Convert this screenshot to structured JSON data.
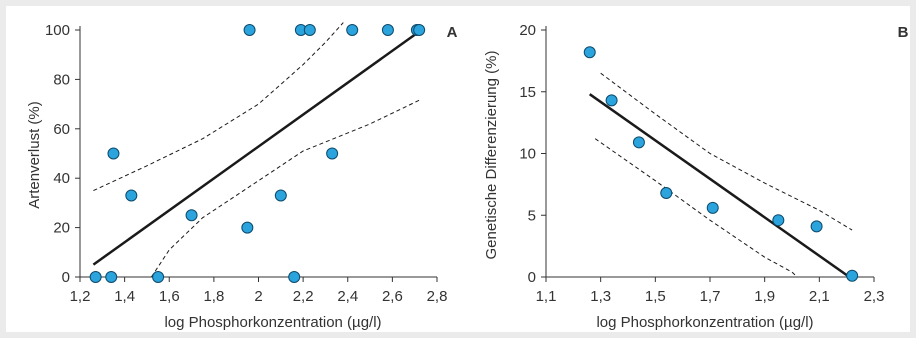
{
  "chart_data": [
    {
      "panel": "A",
      "type": "scatter",
      "xlabel": "log Phosphorkonzentration (µg/l)",
      "ylabel": "Artenverlust (%)",
      "xlim": [
        1.2,
        2.8
      ],
      "ylim": [
        0,
        100
      ],
      "xticks": [
        "1,2",
        "1,4",
        "1,6",
        "1,8",
        "2",
        "2,2",
        "2,4",
        "2,6",
        "2,8"
      ],
      "yticks": [
        "0",
        "20",
        "40",
        "60",
        "80",
        "100"
      ],
      "grid": false,
      "colors": {
        "point": "#2ba3dd",
        "point_stroke": "#0d4a6b",
        "line": "#1a1a1a",
        "ci": "#1a1a1a"
      },
      "points": [
        {
          "x": 1.27,
          "y": 0
        },
        {
          "x": 1.34,
          "y": 0
        },
        {
          "x": 1.55,
          "y": 0
        },
        {
          "x": 2.16,
          "y": 0
        },
        {
          "x": 1.35,
          "y": 50
        },
        {
          "x": 1.43,
          "y": 33
        },
        {
          "x": 1.7,
          "y": 25
        },
        {
          "x": 1.95,
          "y": 20
        },
        {
          "x": 2.1,
          "y": 33
        },
        {
          "x": 2.33,
          "y": 50
        },
        {
          "x": 1.96,
          "y": 100
        },
        {
          "x": 2.19,
          "y": 100
        },
        {
          "x": 2.23,
          "y": 100
        },
        {
          "x": 2.42,
          "y": 100
        },
        {
          "x": 2.58,
          "y": 100
        },
        {
          "x": 2.71,
          "y": 100
        },
        {
          "x": 2.72,
          "y": 100
        }
      ],
      "fit": [
        {
          "x": 1.26,
          "y": 5
        },
        {
          "x": 2.73,
          "y": 100
        }
      ],
      "ci_upper": [
        {
          "x": 1.26,
          "y": 35
        },
        {
          "x": 1.5,
          "y": 45
        },
        {
          "x": 1.75,
          "y": 56
        },
        {
          "x": 2.0,
          "y": 70
        },
        {
          "x": 2.2,
          "y": 86
        },
        {
          "x": 2.3,
          "y": 95
        },
        {
          "x": 2.38,
          "y": 103
        }
      ],
      "ci_lower": [
        {
          "x": 1.52,
          "y": 0
        },
        {
          "x": 1.6,
          "y": 11
        },
        {
          "x": 1.75,
          "y": 24
        },
        {
          "x": 2.0,
          "y": 39
        },
        {
          "x": 2.2,
          "y": 51
        },
        {
          "x": 2.5,
          "y": 62
        },
        {
          "x": 2.73,
          "y": 72
        }
      ]
    },
    {
      "panel": "B",
      "type": "scatter",
      "xlabel": "log Phosphorkonzentration (µg/l)",
      "ylabel": "Genetische Differenzierung (%)",
      "xlim": [
        1.1,
        2.3
      ],
      "ylim": [
        0,
        20
      ],
      "xticks": [
        "1,1",
        "1,3",
        "1,5",
        "1,7",
        "1,9",
        "2,1",
        "2,3"
      ],
      "yticks": [
        "0",
        "5",
        "10",
        "15",
        "20"
      ],
      "grid": false,
      "colors": {
        "point": "#2ba3dd",
        "point_stroke": "#0d4a6b",
        "line": "#1a1a1a",
        "ci": "#1a1a1a"
      },
      "points": [
        {
          "x": 1.26,
          "y": 18.2
        },
        {
          "x": 1.34,
          "y": 14.3
        },
        {
          "x": 1.44,
          "y": 10.9
        },
        {
          "x": 1.54,
          "y": 6.8
        },
        {
          "x": 1.71,
          "y": 5.6
        },
        {
          "x": 1.95,
          "y": 4.6
        },
        {
          "x": 2.09,
          "y": 4.1
        },
        {
          "x": 2.22,
          "y": 0.1
        }
      ],
      "fit": [
        {
          "x": 1.26,
          "y": 14.8
        },
        {
          "x": 2.21,
          "y": 0
        }
      ],
      "ci_upper": [
        {
          "x": 1.3,
          "y": 16.5
        },
        {
          "x": 1.5,
          "y": 13.2
        },
        {
          "x": 1.7,
          "y": 10.0
        },
        {
          "x": 1.9,
          "y": 7.6
        },
        {
          "x": 2.1,
          "y": 5.4
        },
        {
          "x": 2.22,
          "y": 3.8
        }
      ],
      "ci_lower": [
        {
          "x": 1.28,
          "y": 11.2
        },
        {
          "x": 1.5,
          "y": 7.8
        },
        {
          "x": 1.7,
          "y": 4.6
        },
        {
          "x": 1.9,
          "y": 1.6
        },
        {
          "x": 2.0,
          "y": 0.4
        },
        {
          "x": 2.09,
          "y": -1.5
        }
      ]
    }
  ]
}
